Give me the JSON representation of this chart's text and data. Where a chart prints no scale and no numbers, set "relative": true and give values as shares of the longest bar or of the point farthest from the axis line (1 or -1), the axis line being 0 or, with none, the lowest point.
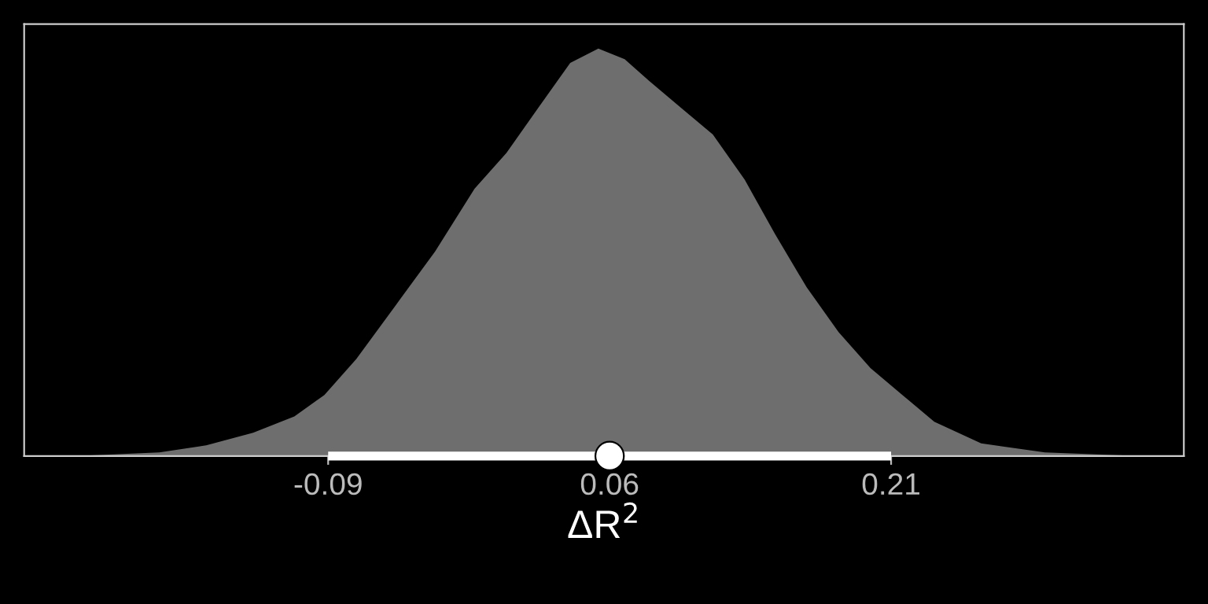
{
  "chart_data": {
    "type": "area",
    "relative": true,
    "xlabel": "ΔR$^{2}$",
    "xlim": [
      -0.252,
      0.366
    ],
    "xticks": [
      -0.09,
      0.06,
      0.21
    ],
    "tick_labels": "x",
    "grid": false,
    "legend": false,
    "series": [
      {
        "color": "#6e6e6e",
        "x": [
          -0.224,
          -0.18,
          -0.155,
          -0.13,
          -0.108,
          -0.092,
          -0.075,
          -0.054,
          -0.033,
          -0.012,
          0.005,
          0.022,
          0.039,
          0.054,
          0.068,
          0.081,
          0.098,
          0.115,
          0.132,
          0.148,
          0.165,
          0.182,
          0.199,
          0.216,
          0.233,
          0.258,
          0.292,
          0.342
        ],
        "values": [
          0,
          0.009,
          0.026,
          0.057,
          0.097,
          0.15,
          0.238,
          0.37,
          0.502,
          0.656,
          0.744,
          0.855,
          0.965,
          1,
          0.974,
          0.921,
          0.855,
          0.789,
          0.678,
          0.546,
          0.414,
          0.304,
          0.216,
          0.15,
          0.084,
          0.031,
          0.009,
          0
        ]
      },
      {
        "type": "scatter",
        "color": "#ffffff",
        "marker": "circle",
        "x": [
          0.06
        ],
        "values": [
          0
        ],
        "xerrors": [
          [
            -0.09,
            0.21
          ]
        ]
      }
    ]
  }
}
